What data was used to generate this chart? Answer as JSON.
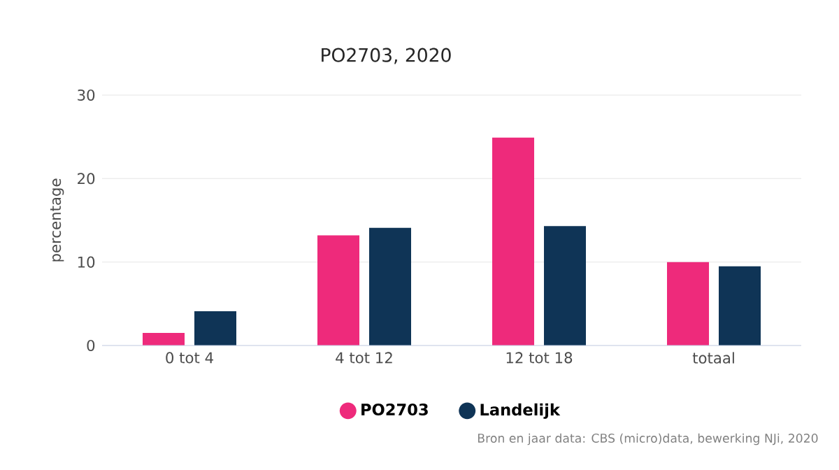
{
  "chart_data": {
    "type": "bar",
    "title": "PO2703, 2020",
    "ylabel": "percentage",
    "categories": [
      "0 tot 4",
      "4 tot 12",
      "12 tot 18",
      "totaal"
    ],
    "series": [
      {
        "name": "PO2703",
        "color": "#ee2a7b",
        "values": [
          1.5,
          13.2,
          24.9,
          10.0
        ]
      },
      {
        "name": "Landelijk",
        "color": "#0f3456",
        "values": [
          4.1,
          14.1,
          14.3,
          9.5
        ]
      }
    ],
    "ylim": [
      0,
      30
    ],
    "yticks": [
      0,
      10,
      20,
      30
    ],
    "grid": "y",
    "legend": "bottom",
    "annotations": [
      "Bron en jaar data: CBS (micro)data, bewerking NJi, 2020"
    ]
  }
}
